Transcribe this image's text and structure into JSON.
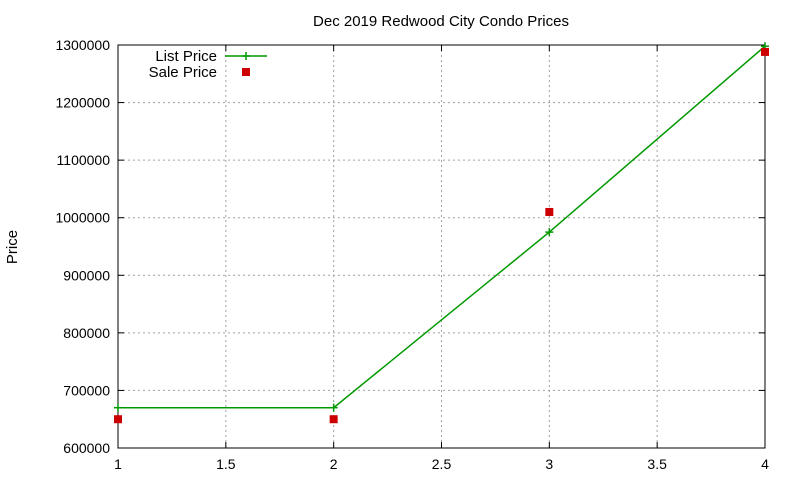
{
  "chart_data": {
    "type": "line",
    "title": "Dec 2019 Redwood City Condo Prices",
    "xlabel": "",
    "ylabel": "Price",
    "xlim": [
      1,
      4
    ],
    "ylim": [
      600000,
      1300000
    ],
    "x_ticks": [
      "1",
      "1.5",
      "2",
      "2.5",
      "3",
      "3.5",
      "4"
    ],
    "y_ticks": [
      "600000",
      "700000",
      "800000",
      "900000",
      "1000000",
      "1100000",
      "1200000",
      "1300000"
    ],
    "grid": true,
    "legend_position": "top-left",
    "series": [
      {
        "name": "List Price",
        "style": "linespoints",
        "marker": "plus",
        "color": "#009900",
        "x": [
          1,
          2,
          3,
          4
        ],
        "y": [
          670000,
          670000,
          975000,
          1298000
        ]
      },
      {
        "name": "Sale Price",
        "style": "points",
        "marker": "square",
        "color": "#cc0000",
        "x": [
          1,
          2,
          3,
          4
        ],
        "y": [
          650000,
          650000,
          1010000,
          1288000
        ]
      }
    ]
  }
}
